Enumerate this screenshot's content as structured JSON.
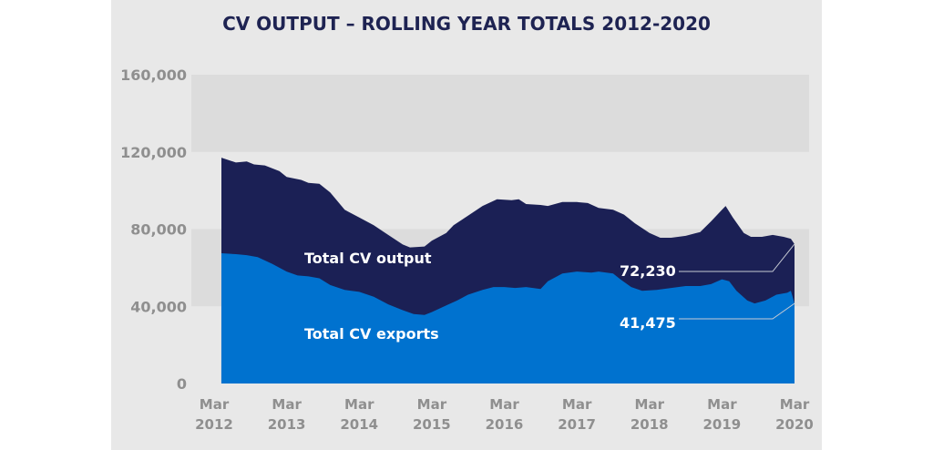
{
  "chart_data": {
    "type": "area",
    "title": "CV OUTPUT – ROLLING YEAR TOTALS 2012-2020",
    "xlabel": "",
    "ylabel": "",
    "ylim": [
      0,
      160000
    ],
    "y_ticks": [
      "0",
      "40,000",
      "80,000",
      "120,000",
      "160,000"
    ],
    "y_tick_values": [
      0,
      40000,
      80000,
      120000,
      160000
    ],
    "x_ticks": [
      {
        "month": "Mar",
        "year": "2012",
        "x": 2012.0
      },
      {
        "month": "Mar",
        "year": "2013",
        "x": 2013.0
      },
      {
        "month": "Mar",
        "year": "2014",
        "x": 2014.0
      },
      {
        "month": "Mar",
        "year": "2015",
        "x": 2015.0
      },
      {
        "month": "Mar",
        "year": "2016",
        "x": 2016.0
      },
      {
        "month": "Mar",
        "year": "2017",
        "x": 2017.0
      },
      {
        "month": "Mar",
        "year": "2018",
        "x": 2018.0
      },
      {
        "month": "Mar",
        "year": "2019",
        "x": 2019.0
      },
      {
        "month": "Mar",
        "year": "2020",
        "x": 2020.0
      }
    ],
    "grid": "alternating horizontal bands",
    "series": [
      {
        "name": "Total CV output",
        "color": "#1b2055",
        "points": [
          [
            2012.1,
            117000
          ],
          [
            2012.3,
            114500
          ],
          [
            2012.45,
            115000
          ],
          [
            2012.55,
            113500
          ],
          [
            2012.7,
            113000
          ],
          [
            2012.9,
            110000
          ],
          [
            2013.0,
            107000
          ],
          [
            2013.2,
            105500
          ],
          [
            2013.3,
            104000
          ],
          [
            2013.45,
            103500
          ],
          [
            2013.6,
            99000
          ],
          [
            2013.8,
            90000
          ],
          [
            2014.0,
            86000
          ],
          [
            2014.2,
            82000
          ],
          [
            2014.4,
            77000
          ],
          [
            2014.6,
            72000
          ],
          [
            2014.7,
            70500
          ],
          [
            2014.9,
            71000
          ],
          [
            2015.0,
            74000
          ],
          [
            2015.2,
            78000
          ],
          [
            2015.3,
            82000
          ],
          [
            2015.5,
            87000
          ],
          [
            2015.7,
            92000
          ],
          [
            2015.9,
            95500
          ],
          [
            2016.1,
            95000
          ],
          [
            2016.2,
            95500
          ],
          [
            2016.3,
            93000
          ],
          [
            2016.5,
            92500
          ],
          [
            2016.6,
            92000
          ],
          [
            2016.8,
            94000
          ],
          [
            2017.0,
            94000
          ],
          [
            2017.15,
            93500
          ],
          [
            2017.3,
            91000
          ],
          [
            2017.5,
            90000
          ],
          [
            2017.65,
            87500
          ],
          [
            2017.8,
            83000
          ],
          [
            2018.0,
            78000
          ],
          [
            2018.15,
            75500
          ],
          [
            2018.3,
            75500
          ],
          [
            2018.5,
            76500
          ],
          [
            2018.7,
            78500
          ],
          [
            2018.85,
            84000
          ],
          [
            2019.0,
            90000
          ],
          [
            2019.05,
            92000
          ],
          [
            2019.15,
            86000
          ],
          [
            2019.3,
            78000
          ],
          [
            2019.4,
            76000
          ],
          [
            2019.55,
            76000
          ],
          [
            2019.7,
            77000
          ],
          [
            2019.85,
            76000
          ],
          [
            2019.95,
            75000
          ],
          [
            2020.0,
            72230
          ]
        ]
      },
      {
        "name": "Total CV exports",
        "color": "#0072cf",
        "points": [
          [
            2012.1,
            67500
          ],
          [
            2012.3,
            67000
          ],
          [
            2012.45,
            66500
          ],
          [
            2012.6,
            65500
          ],
          [
            2012.8,
            62000
          ],
          [
            2013.0,
            58000
          ],
          [
            2013.15,
            56000
          ],
          [
            2013.3,
            55500
          ],
          [
            2013.45,
            54500
          ],
          [
            2013.6,
            51000
          ],
          [
            2013.8,
            48500
          ],
          [
            2014.0,
            47500
          ],
          [
            2014.2,
            45000
          ],
          [
            2014.4,
            41000
          ],
          [
            2014.6,
            38000
          ],
          [
            2014.75,
            36000
          ],
          [
            2014.9,
            35500
          ],
          [
            2015.0,
            37000
          ],
          [
            2015.2,
            40500
          ],
          [
            2015.35,
            43000
          ],
          [
            2015.5,
            46000
          ],
          [
            2015.7,
            48500
          ],
          [
            2015.85,
            50000
          ],
          [
            2016.0,
            50000
          ],
          [
            2016.15,
            49500
          ],
          [
            2016.3,
            50000
          ],
          [
            2016.5,
            49000
          ],
          [
            2016.6,
            53000
          ],
          [
            2016.8,
            57000
          ],
          [
            2017.0,
            58000
          ],
          [
            2017.2,
            57500
          ],
          [
            2017.3,
            58000
          ],
          [
            2017.5,
            57000
          ],
          [
            2017.6,
            54000
          ],
          [
            2017.75,
            50000
          ],
          [
            2017.9,
            48000
          ],
          [
            2018.1,
            48500
          ],
          [
            2018.3,
            49500
          ],
          [
            2018.5,
            50500
          ],
          [
            2018.7,
            50500
          ],
          [
            2018.85,
            51500
          ],
          [
            2019.0,
            54000
          ],
          [
            2019.1,
            53000
          ],
          [
            2019.2,
            48000
          ],
          [
            2019.35,
            43000
          ],
          [
            2019.45,
            41500
          ],
          [
            2019.6,
            43000
          ],
          [
            2019.75,
            46000
          ],
          [
            2019.9,
            47000
          ],
          [
            2019.95,
            48000
          ],
          [
            2020.0,
            41475
          ]
        ]
      }
    ],
    "annotations": [
      {
        "text": "Total CV output",
        "series": "Total CV output"
      },
      {
        "text": "Total CV exports",
        "series": "Total CV exports"
      },
      {
        "text": "72,230",
        "value": 72230
      },
      {
        "text": "41,475",
        "value": 41475
      }
    ],
    "colors": {
      "panel_bg": "#e8e8e8",
      "band_bg": "#dcdcdc",
      "output": "#1b2055",
      "exports": "#0072cf",
      "title": "#1e2352",
      "ticks": "#8f8f8f",
      "leader": "#c7cbd4"
    }
  }
}
